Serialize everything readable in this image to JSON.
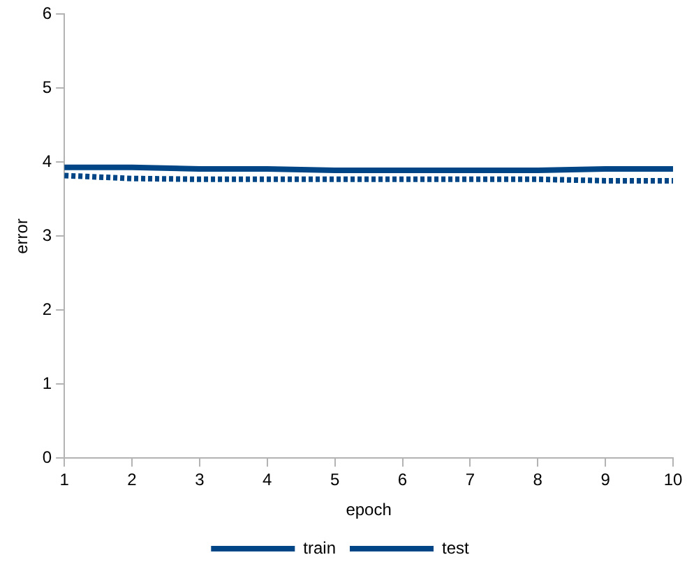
{
  "chart_data": {
    "type": "line",
    "xlabel": "epoch",
    "ylabel": "error",
    "x": [
      1,
      2,
      3,
      4,
      5,
      6,
      7,
      8,
      9,
      10
    ],
    "xlim": [
      1,
      10
    ],
    "xticks": [
      1,
      2,
      3,
      4,
      5,
      6,
      7,
      8,
      9,
      10
    ],
    "ylim": [
      0,
      6
    ],
    "yticks": [
      0,
      1,
      2,
      3,
      4,
      5,
      6
    ],
    "grid": false,
    "legend": "bottom",
    "marker": "none",
    "series": [
      {
        "name": "train",
        "color": "#004586",
        "line_style": "dotted",
        "values": [
          3.82,
          3.78,
          3.77,
          3.77,
          3.77,
          3.77,
          3.77,
          3.77,
          3.75,
          3.75
        ]
      },
      {
        "name": "test",
        "color": "#004586",
        "line_style": "solid",
        "values": [
          3.93,
          3.93,
          3.91,
          3.91,
          3.89,
          3.89,
          3.89,
          3.89,
          3.91,
          3.91
        ]
      }
    ]
  }
}
